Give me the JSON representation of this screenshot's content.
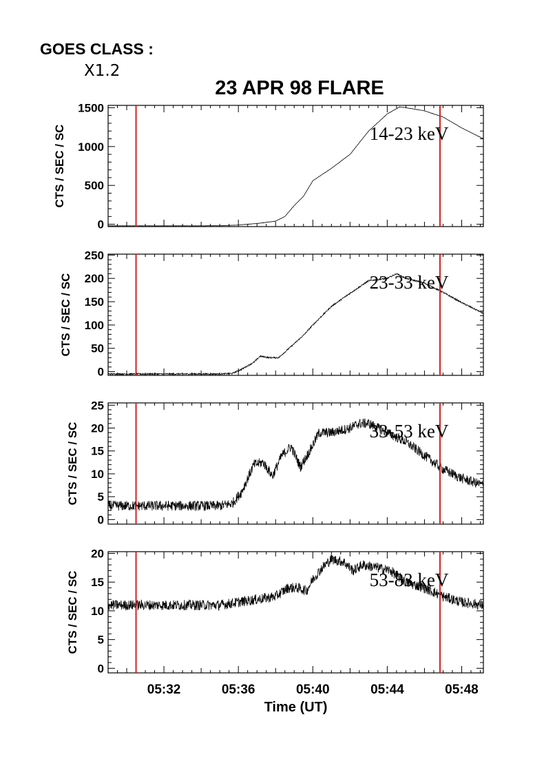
{
  "header": {
    "goes_label": "GOES CLASS :",
    "goes_value": "X1.2",
    "title": "23 APR 98 FLARE"
  },
  "colors": {
    "marker": "#d42020",
    "trace": "#000000",
    "axes": "#000000"
  },
  "chart_data": [
    {
      "type": "line",
      "band_label": "14-23 keV",
      "ylabel": "CTS / SEC / SC",
      "ylim": [
        -30,
        1530
      ],
      "yticks": [
        0,
        500,
        1000,
        1500
      ],
      "xlim": [
        "05:29:00",
        "05:49:10"
      ],
      "noise": 2,
      "series": [
        {
          "x": [
            "05:29:00",
            "05:32:00",
            "05:34:00",
            "05:35:00",
            "05:36:00",
            "05:37:00",
            "05:38:00",
            "05:38:30",
            "05:39:00",
            "05:39:30",
            "05:40:00",
            "05:41:00",
            "05:42:00",
            "05:43:00",
            "05:44:00",
            "05:44:40",
            "05:45:00",
            "05:46:00",
            "05:47:00",
            "05:48:00",
            "05:49:10"
          ],
          "values": [
            -20,
            -20,
            -20,
            -18,
            -10,
            10,
            40,
            100,
            240,
            360,
            560,
            720,
            900,
            1200,
            1420,
            1510,
            1500,
            1460,
            1380,
            1240,
            1100
          ]
        }
      ]
    },
    {
      "type": "line",
      "band_label": "23-33 keV",
      "ylabel": "CTS / SEC / SC",
      "ylim": [
        -8,
        252
      ],
      "yticks": [
        0,
        50,
        100,
        150,
        200,
        250
      ],
      "xlim": [
        "05:29:00",
        "05:49:10"
      ],
      "noise": 1.5,
      "series": [
        {
          "x": [
            "05:29:00",
            "05:32:00",
            "05:35:00",
            "05:35:40",
            "05:36:10",
            "05:36:50",
            "05:37:10",
            "05:37:40",
            "05:38:10",
            "05:38:40",
            "05:39:30",
            "05:40:00",
            "05:41:00",
            "05:42:00",
            "05:43:00",
            "05:44:00",
            "05:44:30",
            "05:45:00",
            "05:46:00",
            "05:47:00",
            "05:48:00",
            "05:49:10"
          ],
          "values": [
            -5,
            -5,
            -5,
            -4,
            5,
            20,
            33,
            30,
            30,
            48,
            78,
            100,
            140,
            168,
            195,
            200,
            210,
            200,
            190,
            170,
            148,
            125
          ]
        }
      ]
    },
    {
      "type": "line",
      "band_label": "33-53 keV",
      "ylabel": "CTS / SEC / SC",
      "ylim": [
        -1,
        25.5
      ],
      "yticks": [
        0,
        5,
        10,
        15,
        20,
        25
      ],
      "xlim": [
        "05:29:00",
        "05:49:10"
      ],
      "noise": 1.1,
      "series": [
        {
          "x": [
            "05:29:00",
            "05:32:00",
            "05:35:00",
            "05:35:40",
            "05:36:10",
            "05:36:50",
            "05:37:20",
            "05:37:50",
            "05:38:20",
            "05:38:50",
            "05:39:20",
            "05:39:50",
            "05:40:20",
            "05:41:00",
            "05:42:00",
            "05:42:30",
            "05:43:00",
            "05:44:00",
            "05:45:00",
            "05:46:00",
            "05:47:00",
            "05:48:00",
            "05:49:10"
          ],
          "values": [
            3,
            3,
            3,
            3.5,
            6,
            12,
            12.5,
            9.5,
            14,
            16,
            11.5,
            15,
            19,
            19,
            20,
            21,
            21,
            19,
            17,
            14,
            11,
            9,
            7.5
          ]
        }
      ]
    },
    {
      "type": "line",
      "band_label": "53-83 keV",
      "ylabel": "CTS / SEC / SC",
      "ylim": [
        -0.8,
        20.3
      ],
      "yticks": [
        0,
        5,
        10,
        15,
        20
      ],
      "xlim": [
        "05:29:00",
        "05:49:10"
      ],
      "noise": 0.9,
      "series": [
        {
          "x": [
            "05:29:00",
            "05:32:00",
            "05:34:00",
            "05:35:00",
            "05:36:00",
            "05:37:00",
            "05:38:00",
            "05:38:40",
            "05:39:10",
            "05:39:40",
            "05:40:00",
            "05:40:30",
            "05:41:00",
            "05:41:40",
            "05:42:10",
            "05:42:40",
            "05:43:30",
            "05:44:10",
            "05:45:00",
            "05:46:00",
            "05:47:00",
            "05:48:00",
            "05:49:10"
          ],
          "values": [
            11,
            11,
            11,
            11,
            11.5,
            12,
            12.5,
            14,
            14,
            13.5,
            15.5,
            17.5,
            19,
            18.5,
            17,
            18,
            17.5,
            17,
            15,
            14,
            12.5,
            11.5,
            11
          ]
        }
      ]
    }
  ],
  "markers": {
    "times": [
      "05:30:30",
      "05:46:50"
    ]
  },
  "x_axis": {
    "ticks": [
      "05:32",
      "05:36",
      "05:40",
      "05:44",
      "05:48"
    ],
    "tick_times": [
      "05:32:00",
      "05:36:00",
      "05:40:00",
      "05:44:00",
      "05:48:00"
    ],
    "xlabel": "Time (UT)"
  }
}
